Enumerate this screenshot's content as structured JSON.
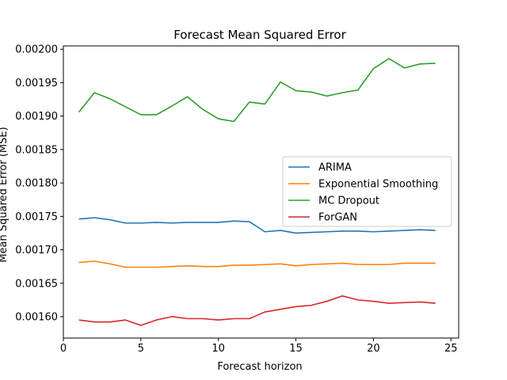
{
  "chart_data": {
    "type": "line",
    "title": "Forecast Mean Squared Error",
    "xlabel": "Forecast horizon",
    "ylabel": "Mean Squared Error (MSE)",
    "xlim": [
      0,
      25.5
    ],
    "ylim": [
      0.001568,
      0.002005
    ],
    "xticks": [
      0,
      5,
      10,
      15,
      20,
      25
    ],
    "yticks": [
      0.0016,
      0.00165,
      0.0017,
      0.00175,
      0.0018,
      0.00185,
      0.0019,
      0.00195,
      0.002
    ],
    "ytick_labels": [
      "0.00160",
      "0.00165",
      "0.00170",
      "0.00175",
      "0.00180",
      "0.00185",
      "0.00190",
      "0.00195",
      "0.00200"
    ],
    "legend_position": "center-right",
    "grid": false,
    "x": [
      1,
      2,
      3,
      4,
      5,
      6,
      7,
      8,
      9,
      10,
      11,
      12,
      13,
      14,
      15,
      16,
      17,
      18,
      19,
      20,
      21,
      22,
      23,
      24
    ],
    "series": [
      {
        "name": "ARIMA",
        "color": "#1f77b4",
        "values": [
          0.001746,
          0.001748,
          0.001745,
          0.00174,
          0.00174,
          0.001741,
          0.00174,
          0.001741,
          0.001741,
          0.001741,
          0.001743,
          0.001742,
          0.001727,
          0.001729,
          0.001725,
          0.001726,
          0.001727,
          0.001728,
          0.001728,
          0.001727,
          0.001728,
          0.001729,
          0.00173,
          0.001729
        ]
      },
      {
        "name": "Exponential Smoothing",
        "color": "#ff7f0e",
        "values": [
          0.001681,
          0.001683,
          0.001679,
          0.001674,
          0.001674,
          0.001674,
          0.001675,
          0.001676,
          0.001675,
          0.001675,
          0.001677,
          0.001677,
          0.001678,
          0.001679,
          0.001676,
          0.001678,
          0.001679,
          0.00168,
          0.001678,
          0.001678,
          0.001678,
          0.00168,
          0.00168,
          0.00168
        ]
      },
      {
        "name": "MC Dropout",
        "color": "#2ca02c",
        "values": [
          0.001906,
          0.001935,
          0.001926,
          0.001914,
          0.001902,
          0.001902,
          0.001915,
          0.001929,
          0.00191,
          0.001896,
          0.001892,
          0.001921,
          0.001918,
          0.001951,
          0.001938,
          0.001936,
          0.00193,
          0.001935,
          0.001939,
          0.001971,
          0.001986,
          0.001972,
          0.001978,
          0.001979
        ]
      },
      {
        "name": "ForGAN",
        "color": "#d62728",
        "values": [
          0.001595,
          0.001592,
          0.001592,
          0.001595,
          0.001587,
          0.001595,
          0.0016,
          0.001597,
          0.001597,
          0.001595,
          0.001597,
          0.001597,
          0.001607,
          0.001611,
          0.001615,
          0.001617,
          0.001623,
          0.001631,
          0.001625,
          0.001623,
          0.00162,
          0.001621,
          0.001622,
          0.00162
        ]
      }
    ]
  }
}
